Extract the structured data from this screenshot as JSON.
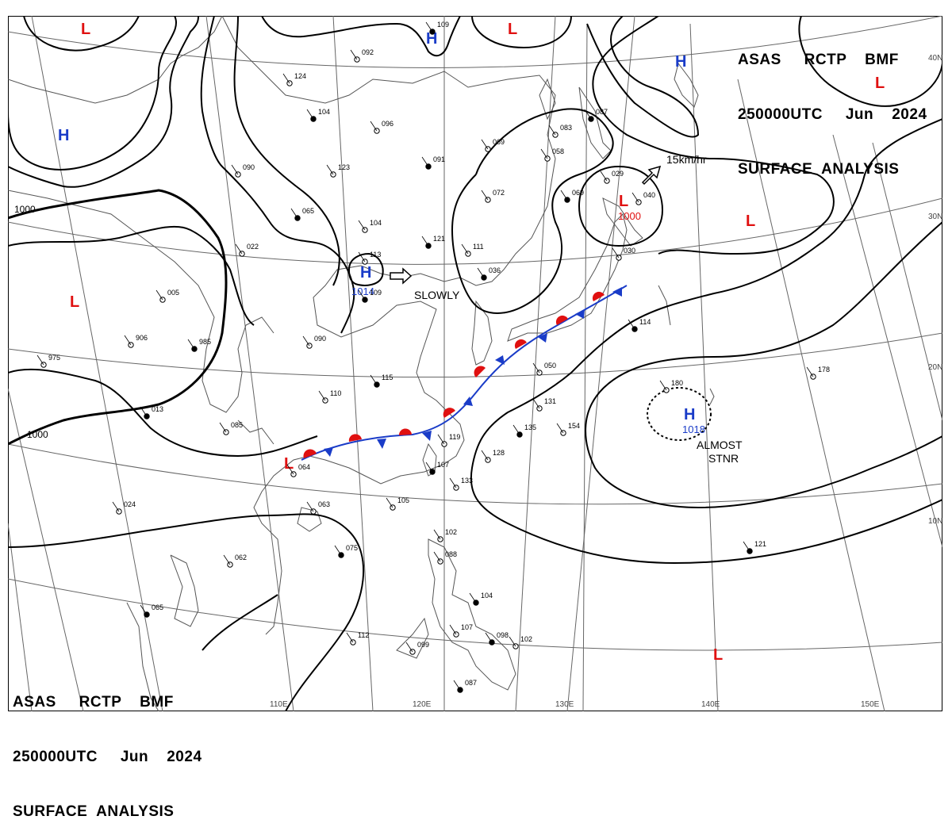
{
  "header": {
    "line1": "ASAS     RCTP    BMF",
    "line2": "250000UTC     Jun    2024",
    "line3": "SURFACE  ANALYSIS"
  },
  "footer": {
    "line1": "ASAS     RCTP    BMF",
    "line2": "250000UTC     Jun    2024",
    "line3": "SURFACE  ANALYSIS"
  },
  "longitude_labels": [
    "110E",
    "120E",
    "130E",
    "140E",
    "150E"
  ],
  "latitude_labels": [
    "40N",
    "30N",
    "20N",
    "10N"
  ],
  "pressure_systems": [
    {
      "type": "H",
      "color": "#1a3cc8"
    },
    {
      "type": "H",
      "color": "#1a3cc8"
    },
    {
      "type": "H",
      "color": "#1a3cc8"
    },
    {
      "type": "H",
      "color": "#1a3cc8",
      "value": "1014"
    },
    {
      "type": "H",
      "color": "#1a3cc8",
      "value": "1018"
    },
    {
      "type": "L",
      "color": "#e01010"
    },
    {
      "type": "L",
      "color": "#e01010"
    },
    {
      "type": "L",
      "color": "#e01010"
    },
    {
      "type": "L",
      "color": "#e01010",
      "value": "1000"
    },
    {
      "type": "L",
      "color": "#e01010"
    },
    {
      "type": "L",
      "color": "#e01010"
    },
    {
      "type": "L",
      "color": "#e01010"
    },
    {
      "type": "L",
      "color": "#e01010"
    }
  ],
  "isobar_labels": [
    "1000",
    "1000"
  ],
  "annotations": {
    "movement_ne": "15km/hr",
    "movement_h": "SLOWLY",
    "stationary_1": "ALMOST",
    "stationary_2": "STNR"
  },
  "colors": {
    "high": "#1a3cc8",
    "low": "#e01010",
    "warm_front": "#e01010",
    "cold_front": "#1a3cc8",
    "isobar": "#000000",
    "coast": "#555555"
  },
  "station_values": [
    "109",
    "092",
    "124",
    "104",
    "096",
    "123",
    "091",
    "069",
    "083",
    "087",
    "058",
    "072",
    "069",
    "029",
    "090",
    "065",
    "104",
    "022",
    "121",
    "111",
    "113",
    "109",
    "005",
    "906",
    "985",
    "975",
    "090",
    "115",
    "110",
    "085",
    "013",
    "024",
    "062",
    "065",
    "064",
    "063",
    "075",
    "105",
    "119",
    "107",
    "133",
    "128",
    "135",
    "154",
    "131",
    "114",
    "180",
    "178",
    "121",
    "102",
    "088",
    "104",
    "112",
    "107",
    "098",
    "102",
    "099",
    "087",
    "040",
    "030",
    "036",
    "050"
  ]
}
